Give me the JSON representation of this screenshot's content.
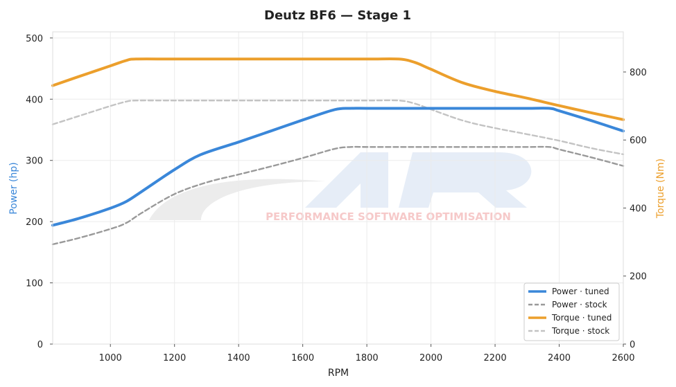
{
  "chart_data": {
    "type": "line",
    "title": "Deutz BF6 — Stage 1",
    "xlabel": "RPM",
    "ylabel_left": "Power (hp)",
    "ylabel_right": "Torque (Nm)",
    "xlim": [
      820,
      2600
    ],
    "ylim_left": [
      0,
      510
    ],
    "ylim_right": [
      0,
      918
    ],
    "xticks": [
      1000,
      1200,
      1400,
      1600,
      1800,
      2000,
      2200,
      2400,
      2600
    ],
    "yticks_left": [
      0,
      100,
      200,
      300,
      400,
      500
    ],
    "yticks_right": [
      0,
      200,
      400,
      600,
      800
    ],
    "grid": true,
    "legend_position": "lower-right",
    "watermark": "PERFORMANCE SOFTWARE OPTIMISATION",
    "colors": {
      "power": "#3a87d9",
      "torque": "#ec9f2c",
      "power_stock": "#999999",
      "torque_stock": "#c3c3c3"
    },
    "series": [
      {
        "name": "Power · tuned",
        "axis": "left",
        "style": "solid",
        "color": "#3a87d9",
        "x": [
          820,
          900,
          1000,
          1050,
          1100,
          1200,
          1280,
          1400,
          1500,
          1600,
          1700,
          1750,
          1800,
          1900,
          2000,
          2100,
          2200,
          2300,
          2370,
          2400,
          2500,
          2600
        ],
        "y": [
          194,
          205,
          222,
          233,
          250,
          285,
          309,
          330,
          348,
          366,
          383,
          385,
          385,
          385,
          385,
          385,
          385,
          385,
          385,
          381,
          365,
          348
        ]
      },
      {
        "name": "Power · stock",
        "axis": "left",
        "style": "dashed",
        "color": "#999999",
        "x": [
          820,
          900,
          1000,
          1050,
          1100,
          1200,
          1300,
          1400,
          1500,
          1600,
          1700,
          1750,
          1800,
          1900,
          2000,
          2100,
          2200,
          2300,
          2370,
          2400,
          2500,
          2600
        ],
        "y": [
          163,
          173,
          188,
          198,
          215,
          245,
          264,
          277,
          290,
          304,
          319,
          322,
          322,
          322,
          322,
          322,
          322,
          322,
          322,
          318,
          305,
          291
        ]
      },
      {
        "name": "Torque · tuned",
        "axis": "right",
        "style": "solid",
        "color": "#ec9f2c",
        "x": [
          820,
          900,
          1000,
          1050,
          1080,
          1200,
          1400,
          1600,
          1800,
          1900,
          1950,
          2000,
          2100,
          2200,
          2300,
          2400,
          2500,
          2600
        ],
        "y": [
          760,
          786,
          818,
          834,
          838,
          838,
          838,
          838,
          838,
          838,
          828,
          808,
          768,
          743,
          723,
          701,
          680,
          660
        ]
      },
      {
        "name": "Torque · stock",
        "axis": "right",
        "style": "dashed",
        "color": "#c3c3c3",
        "x": [
          820,
          900,
          1000,
          1050,
          1080,
          1200,
          1400,
          1600,
          1800,
          1900,
          1950,
          2000,
          2100,
          2200,
          2300,
          2400,
          2500,
          2600
        ],
        "y": [
          646,
          670,
          700,
          713,
          716,
          716,
          716,
          716,
          716,
          716,
          707,
          690,
          657,
          635,
          617,
          598,
          576,
          558
        ]
      }
    ]
  }
}
